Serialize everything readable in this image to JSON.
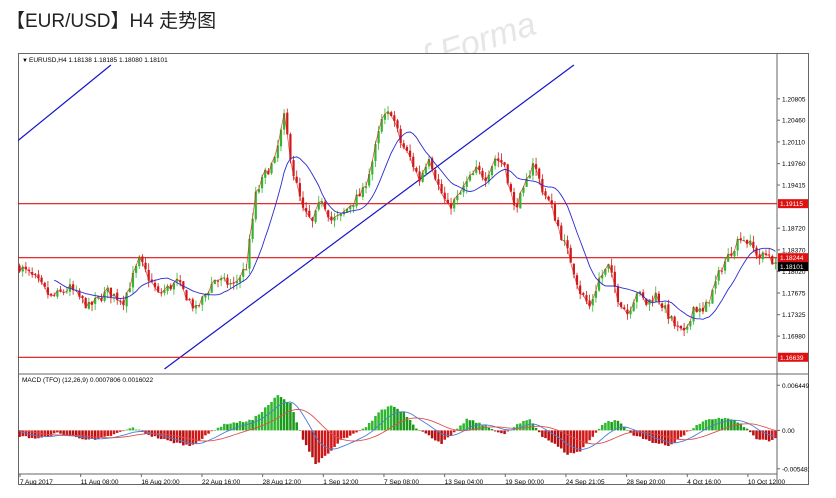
{
  "page_title": "【EUR/USD】H4 走势图",
  "watermark": "FORMA",
  "colors": {
    "bull": "#2fb82f",
    "bear": "#d01818",
    "bull_hist": "#1a9a1a",
    "bear_hist": "#b81010",
    "ma": "#2a2ad0",
    "close_line": "#e02020",
    "hline": "#e01010",
    "trend": "#1515c8",
    "macd_line": "#4a7fd8",
    "signal_line": "#e05050"
  },
  "chart_data": {
    "type": "candlestick",
    "symbol_info": "EURUSD,H4  1.18138 1.18185 1.18080 1.18101",
    "ylim": [
      1.1645,
      1.2135
    ],
    "y_ticks": [
      {
        "label": "1.20805",
        "value": 1.20805
      },
      {
        "label": "1.20460",
        "value": 1.2046
      },
      {
        "label": "1.20110",
        "value": 1.2011
      },
      {
        "label": "1.19760",
        "value": 1.1976
      },
      {
        "label": "1.19415",
        "value": 1.19415
      },
      {
        "label": "1.18720",
        "value": 1.1872
      },
      {
        "label": "1.18370",
        "value": 1.1837
      },
      {
        "label": "1.18020",
        "value": 1.1802
      },
      {
        "label": "1.17675",
        "value": 1.17675
      },
      {
        "label": "1.17325",
        "value": 1.17325
      },
      {
        "label": "1.16980",
        "value": 1.1698
      }
    ],
    "price_tags": [
      {
        "label": "1.19115",
        "value": 1.19115
      },
      {
        "label": "1.18244",
        "value": 1.18244
      },
      {
        "label": "1.18101",
        "value": 1.18101
      },
      {
        "label": "1.16639",
        "value": 1.16639
      }
    ],
    "horizontal_lines": [
      1.19115,
      1.18244,
      1.16639
    ],
    "x_labels": [
      "7 Aug 2017",
      "11 Aug 08:00",
      "16 Aug 20:00",
      "22 Aug 16:00",
      "28 Aug 12:00",
      "1 Sep 12:00",
      "7 Sep 08:00",
      "13 Sep 04:00",
      "19 Sep 00:00",
      "24 Sep 21:05",
      "28 Sep 20:00",
      "4 Oct 16:00",
      "10 Oct 12:00"
    ],
    "candle_count": 202,
    "close_path_anchors": [
      [
        0,
        1.181
      ],
      [
        5,
        1.179
      ],
      [
        10,
        1.176
      ],
      [
        16,
        1.1775
      ],
      [
        22,
        1.1745
      ],
      [
        28,
        1.177
      ],
      [
        33,
        1.1755
      ],
      [
        38,
        1.182
      ],
      [
        44,
        1.1765
      ],
      [
        50,
        1.1785
      ],
      [
        56,
        1.174
      ],
      [
        62,
        1.179
      ],
      [
        68,
        1.178
      ],
      [
        72,
        1.181
      ],
      [
        75,
        1.1925
      ],
      [
        78,
        1.196
      ],
      [
        81,
        1.198
      ],
      [
        84,
        1.205
      ],
      [
        87,
        1.196
      ],
      [
        90,
        1.19
      ],
      [
        93,
        1.188
      ],
      [
        96,
        1.192
      ],
      [
        99,
        1.1885
      ],
      [
        102,
        1.189
      ],
      [
        105,
        1.191
      ],
      [
        109,
        1.193
      ],
      [
        112,
        1.198
      ],
      [
        115,
        1.2045
      ],
      [
        118,
        1.206
      ],
      [
        121,
        1.201
      ],
      [
        124,
        1.1985
      ],
      [
        127,
        1.195
      ],
      [
        130,
        1.199
      ],
      [
        133,
        1.194
      ],
      [
        136,
        1.1905
      ],
      [
        139,
        1.192
      ],
      [
        142,
        1.1945
      ],
      [
        145,
        1.1965
      ],
      [
        148,
        1.1955
      ],
      [
        151,
        1.1985
      ],
      [
        154,
        1.1975
      ],
      [
        157,
        1.1905
      ],
      [
        160,
        1.193
      ],
      [
        163,
        1.198
      ],
      [
        166,
        1.1935
      ],
      [
        169,
        1.1905
      ],
      [
        172,
        1.186
      ],
      [
        175,
        1.182
      ],
      [
        178,
        1.177
      ],
      [
        181,
        1.1745
      ],
      [
        184,
        1.179
      ],
      [
        187,
        1.181
      ],
      [
        190,
        1.176
      ],
      [
        193,
        1.1735
      ],
      [
        196,
        1.177
      ],
      [
        199,
        1.175
      ],
      [
        202,
        1.1765
      ],
      [
        205,
        1.174
      ],
      [
        208,
        1.1715
      ],
      [
        211,
        1.17
      ],
      [
        214,
        1.1745
      ],
      [
        217,
        1.1735
      ],
      [
        220,
        1.177
      ],
      [
        223,
        1.181
      ],
      [
        226,
        1.1835
      ],
      [
        229,
        1.186
      ],
      [
        232,
        1.1845
      ],
      [
        235,
        1.1825
      ],
      [
        238,
        1.183
      ],
      [
        240,
        1.181
      ]
    ],
    "trend_lines": [
      {
        "from": {
          "bar": -2,
          "price": 1.2007
        },
        "to": {
          "bar": 29,
          "price": 1.2135
        }
      },
      {
        "from": {
          "bar": 46,
          "price": 1.1645
        },
        "to": {
          "bar": 176,
          "price": 1.2135
        }
      }
    ],
    "macd": {
      "label": "MACD (TFO) (12,26,9) 0.0007806 0.0016022",
      "ylim": [
        -0.0058,
        0.0072
      ],
      "y_ticks": [
        {
          "label": "0.0064491",
          "value": 0.0064491
        },
        {
          "label": "0.00",
          "value": 0.0
        },
        {
          "label": "-0.0054816",
          "value": -0.0054816
        }
      ],
      "hist_anchors": [
        [
          0,
          -0.0008
        ],
        [
          6,
          -0.0012
        ],
        [
          12,
          -0.0004
        ],
        [
          18,
          -0.001
        ],
        [
          24,
          -0.0014
        ],
        [
          30,
          -0.0006
        ],
        [
          36,
          0.0004
        ],
        [
          42,
          -0.0008
        ],
        [
          48,
          -0.0016
        ],
        [
          54,
          -0.0022
        ],
        [
          58,
          -0.0012
        ],
        [
          62,
          0.0002
        ],
        [
          66,
          0.001
        ],
        [
          70,
          0.0012
        ],
        [
          74,
          0.0015
        ],
        [
          78,
          0.0032
        ],
        [
          82,
          0.005
        ],
        [
          86,
          0.0038
        ],
        [
          90,
          -0.0012
        ],
        [
          94,
          -0.0048
        ],
        [
          98,
          -0.0034
        ],
        [
          102,
          -0.0014
        ],
        [
          106,
          -0.0006
        ],
        [
          110,
          0.0004
        ],
        [
          114,
          0.0026
        ],
        [
          118,
          0.0036
        ],
        [
          122,
          0.0026
        ],
        [
          126,
          0.0004
        ],
        [
          130,
          -0.0008
        ],
        [
          134,
          -0.0018
        ],
        [
          138,
          -0.0004
        ],
        [
          142,
          0.0016
        ],
        [
          146,
          0.001
        ],
        [
          150,
          0.0002
        ],
        [
          154,
          -0.0006
        ],
        [
          158,
          0.0008
        ],
        [
          162,
          0.0016
        ],
        [
          166,
          -0.0008
        ],
        [
          170,
          -0.002
        ],
        [
          174,
          -0.0034
        ],
        [
          178,
          -0.003
        ],
        [
          182,
          -0.0008
        ],
        [
          186,
          0.0012
        ],
        [
          190,
          0.0014
        ],
        [
          194,
          -0.0004
        ],
        [
          198,
          -0.0012
        ],
        [
          202,
          -0.0018
        ],
        [
          206,
          -0.0022
        ],
        [
          210,
          -0.001
        ],
        [
          214,
          0.0004
        ],
        [
          218,
          0.0014
        ],
        [
          222,
          0.0018
        ],
        [
          226,
          0.0016
        ],
        [
          230,
          0.0006
        ],
        [
          234,
          -0.0012
        ],
        [
          238,
          -0.0016
        ],
        [
          240,
          -0.0012
        ]
      ]
    }
  }
}
